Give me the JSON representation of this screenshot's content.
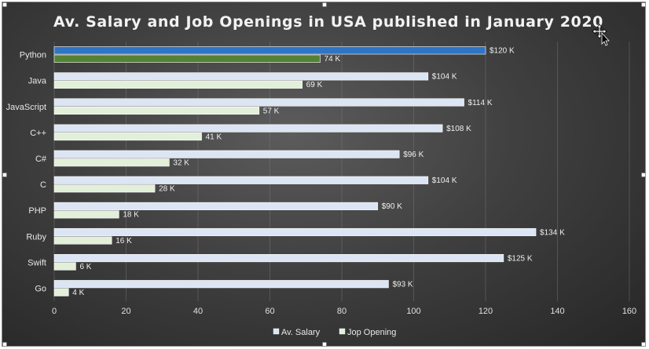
{
  "chart_data": {
    "type": "bar",
    "orientation": "horizontal",
    "title": "Av. Salary and Job Openings in USA published in January 2020",
    "categories": [
      "Python",
      "Java",
      "JavaScript",
      "C++",
      "C#",
      "C",
      "PHP",
      "Ruby",
      "Swift",
      "Go"
    ],
    "series": [
      {
        "name": "Av. Salary",
        "values": [
          120,
          104,
          114,
          108,
          96,
          104,
          90,
          134,
          125,
          93
        ],
        "labels": [
          "$120 K",
          "$104 K",
          "$114 K",
          "$108 K",
          "$96 K",
          "$104 K",
          "$90 K",
          "$134 K",
          "$125 K",
          "$93 K"
        ],
        "color": "#dbe5f4",
        "highlight_colors": {
          "0": "#2e75c6"
        },
        "highlight_borders": {
          "4": "#c0262d"
        }
      },
      {
        "name": "Jop Opening",
        "values": [
          74,
          69,
          57,
          41,
          32,
          28,
          18,
          16,
          6,
          4
        ],
        "labels": [
          "74 K",
          "69 K",
          "57 K",
          "41 K",
          "32 K",
          "28 K",
          "18 K",
          "16 K",
          "6 K",
          "4 K"
        ],
        "color": "#e2efd9",
        "highlight_colors": {
          "0": "#548235"
        }
      }
    ],
    "xlim": [
      0,
      160
    ],
    "xticks": [
      0,
      20,
      40,
      60,
      80,
      100,
      120,
      140,
      160
    ],
    "xlabel": "",
    "ylabel": "",
    "grid": true,
    "legend": "bottom"
  }
}
